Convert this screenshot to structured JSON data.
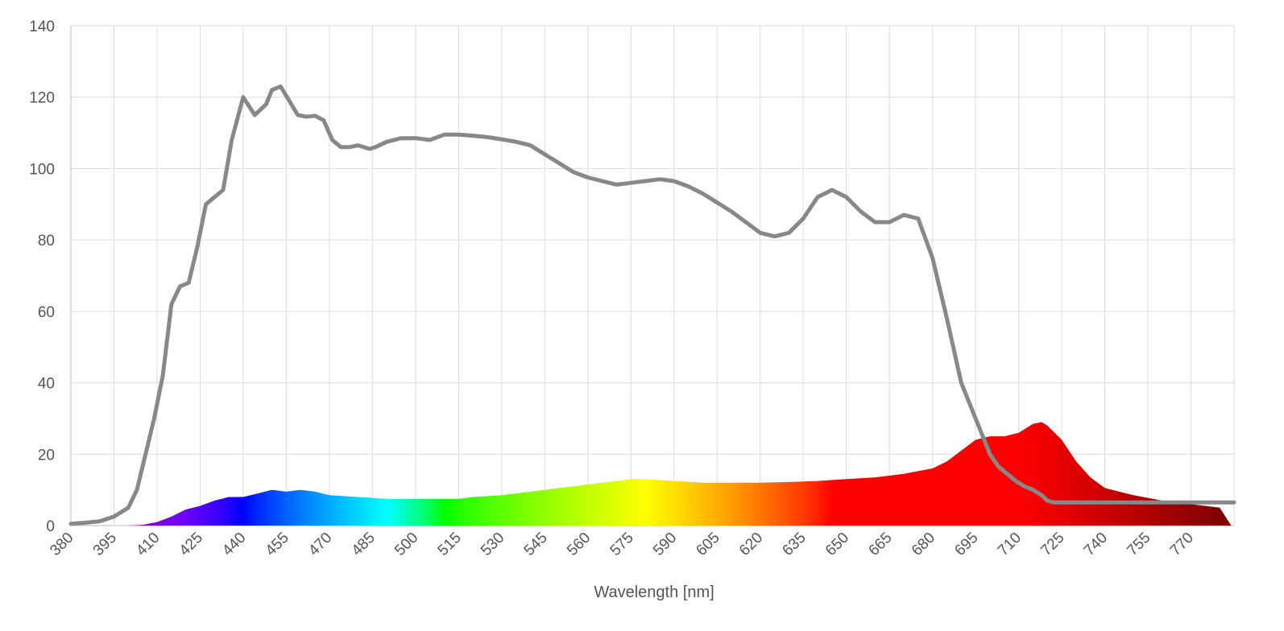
{
  "chart_data": {
    "type": "area",
    "xlabel": "Wavelength [nm]",
    "ylabel": "",
    "title": "",
    "xlim": [
      380,
      785
    ],
    "ylim": [
      0,
      140
    ],
    "grid": true,
    "y_ticks": [
      0,
      20,
      40,
      60,
      80,
      100,
      120,
      140
    ],
    "x_ticks": [
      380,
      395,
      410,
      425,
      440,
      455,
      470,
      485,
      500,
      515,
      530,
      545,
      560,
      575,
      590,
      605,
      620,
      635,
      650,
      665,
      680,
      695,
      710,
      725,
      740,
      755,
      770
    ],
    "x_tick_labels": [
      "380",
      "395",
      "410",
      "425",
      "440",
      "455",
      "470",
      "485",
      "500",
      "515",
      "530",
      "545",
      "560",
      "575",
      "590",
      "605",
      "620",
      "635",
      "650",
      "665",
      "680",
      "695",
      "710",
      "725",
      "740",
      "755",
      "770"
    ],
    "y_tick_labels": [
      "0",
      "20",
      "40",
      "60",
      "80",
      "100",
      "120",
      "140"
    ],
    "series": [
      {
        "style": "line",
        "color": "#888888",
        "x": [
          380,
          385,
          390,
          395,
          400,
          403,
          406,
          409,
          412,
          415,
          418,
          421,
          424,
          427,
          430,
          433,
          436,
          440,
          444,
          448,
          450,
          453,
          456,
          459,
          462,
          465,
          468,
          471,
          474,
          477,
          480,
          484,
          486,
          490,
          495,
          500,
          505,
          510,
          515,
          520,
          525,
          530,
          535,
          540,
          545,
          550,
          555,
          560,
          565,
          570,
          575,
          580,
          585,
          590,
          595,
          600,
          605,
          610,
          615,
          620,
          625,
          630,
          635,
          640,
          645,
          650,
          655,
          660,
          665,
          670,
          675,
          680,
          685,
          690,
          695,
          698,
          700,
          703,
          706,
          709,
          712,
          715,
          718,
          720,
          722,
          725,
          728,
          731,
          734,
          737,
          740,
          745,
          750,
          755,
          760,
          765,
          770,
          775,
          780,
          785
        ],
        "values": [
          0.5,
          0.8,
          1.2,
          2.5,
          5,
          10,
          20,
          30,
          42,
          62,
          67,
          68,
          78,
          90,
          92,
          94,
          108,
          120,
          115,
          118,
          122,
          123,
          119,
          115,
          114.5,
          114.8,
          113.5,
          108,
          106,
          106,
          106.5,
          105.5,
          106,
          107.5,
          108.5,
          108.5,
          108,
          109.5,
          109.5,
          109.2,
          108.8,
          108.2,
          107.5,
          106.5,
          104,
          101.5,
          99,
          97.5,
          96.5,
          95.5,
          96,
          96.5,
          97,
          96.5,
          95,
          93,
          90.5,
          88,
          85,
          82,
          81,
          82,
          86,
          92,
          94,
          92,
          88,
          85,
          85,
          87,
          86,
          75,
          58,
          40,
          30,
          24,
          20,
          16.5,
          14.5,
          12.5,
          11,
          10,
          8.5,
          7,
          6.5,
          6.5,
          6.5,
          6.5,
          6.5,
          6.5,
          6.5,
          6.5,
          6.5,
          6.5,
          6.5,
          6.5,
          6.5,
          6.5,
          6.5,
          6.5
        ]
      },
      {
        "style": "spectrum-area",
        "x": [
          380,
          390,
          400,
          405,
          410,
          415,
          420,
          425,
          430,
          435,
          440,
          445,
          450,
          455,
          460,
          465,
          470,
          480,
          490,
          500,
          510,
          515,
          520,
          530,
          540,
          550,
          560,
          570,
          575,
          580,
          590,
          600,
          610,
          620,
          630,
          640,
          650,
          660,
          670,
          680,
          685,
          690,
          695,
          700,
          705,
          710,
          715,
          718,
          720,
          725,
          730,
          735,
          740,
          750,
          760,
          770,
          780,
          784
        ],
        "values": [
          0,
          0,
          0,
          0.2,
          1,
          2.5,
          4.5,
          5.5,
          7,
          8,
          8,
          9,
          10,
          9.5,
          10,
          9.5,
          8.5,
          8,
          7.5,
          7.5,
          7.5,
          7.5,
          8,
          8.5,
          9.5,
          10.5,
          11.5,
          12.5,
          13,
          13,
          12.5,
          12,
          12,
          12,
          12.2,
          12.5,
          13,
          13.5,
          14.5,
          16,
          18,
          21,
          24,
          25,
          25,
          26,
          28.5,
          29,
          28,
          24,
          18,
          13.5,
          10.5,
          8.5,
          7,
          6,
          5,
          0
        ]
      }
    ]
  }
}
